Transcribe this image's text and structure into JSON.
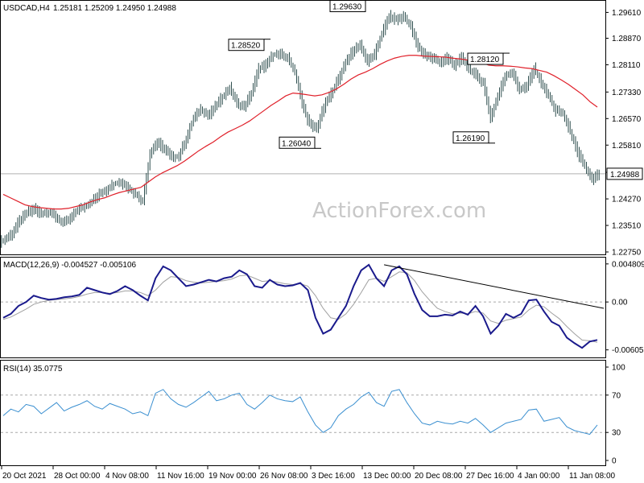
{
  "header": {
    "symbol_tf": "USDCAD,H4",
    "ohlc": "1.25181 1.25209 1.24950 1.24988"
  },
  "watermark": "ActionForex.com",
  "colors": {
    "candle": "#2f4f4f",
    "ma": "#e0202a",
    "macd_main": "#1a1a8c",
    "macd_signal": "#a0a0a0",
    "rsi": "#3a8fd0",
    "trendline": "#000000"
  },
  "chart_data": [
    {
      "type": "line",
      "title": "",
      "price_ticks": [
        "1.29610",
        "1.28870",
        "1.28110",
        "1.27330",
        "1.26570",
        "1.25810",
        "1.25030",
        "1.24270",
        "1.23510",
        "1.22750"
      ],
      "ylim": [
        1.2275,
        1.2985
      ],
      "last_price_label": "1.24988",
      "last_price": 1.24988,
      "annotations": [
        {
          "label": "1.28520",
          "value": 1.2852
        },
        {
          "label": "1.29630",
          "value": 1.2963
        },
        {
          "label": "1.26040",
          "value": 1.2604
        },
        {
          "label": "1.28120",
          "value": 1.2812
        },
        {
          "label": "1.26190",
          "value": 1.2619
        }
      ],
      "series": [
        {
          "values": [
            1.231,
            1.233,
            1.2365,
            1.2385,
            1.24,
            1.2385,
            1.239,
            1.2375,
            1.2355,
            1.237,
            1.2395,
            1.2405,
            1.242,
            1.244,
            1.2455,
            1.247,
            1.2475,
            1.246,
            1.244,
            1.242,
            1.256,
            1.259,
            1.257,
            1.2545,
            1.255,
            1.26,
            1.2655,
            1.2685,
            1.2665,
            1.269,
            1.272,
            1.2745,
            1.27,
            1.269,
            1.273,
            1.28,
            1.281,
            1.284,
            1.284,
            1.283,
            1.279,
            1.27,
            1.264,
            1.263,
            1.269,
            1.273,
            1.277,
            1.282,
            1.285,
            1.287,
            1.282,
            1.284,
            1.29,
            1.295,
            1.294,
            1.295,
            1.292,
            1.286,
            1.284,
            1.283,
            1.282,
            1.283,
            1.281,
            1.283,
            1.28,
            1.278,
            1.276,
            1.266,
            1.272,
            1.278,
            1.279,
            1.274,
            1.275,
            1.28,
            1.276,
            1.272,
            1.268,
            1.267,
            1.262,
            1.256,
            1.252,
            1.248,
            1.25
          ]
        },
        {
          "values": [
            1.244,
            1.243,
            1.242,
            1.241,
            1.2405,
            1.2402,
            1.24,
            1.2398,
            1.2398,
            1.24,
            1.2405,
            1.241,
            1.2418,
            1.2425,
            1.243,
            1.2438,
            1.2445,
            1.245,
            1.2455,
            1.246,
            1.2475,
            1.249,
            1.2502,
            1.2512,
            1.2522,
            1.2535,
            1.255,
            1.2565,
            1.2578,
            1.259,
            1.2605,
            1.2618,
            1.2628,
            1.2638,
            1.265,
            1.2665,
            1.268,
            1.2695,
            1.2708,
            1.2722,
            1.273,
            1.2728,
            1.2725,
            1.2722,
            1.2725,
            1.2732,
            1.2742,
            1.2755,
            1.277,
            1.2782,
            1.279,
            1.28,
            1.2812,
            1.2822,
            1.283,
            1.2835,
            1.2838,
            1.2838,
            1.2836,
            1.2835,
            1.2834,
            1.2833,
            1.283,
            1.2828,
            1.2825,
            1.2822,
            1.2818,
            1.281,
            1.2808,
            1.2808,
            1.2807,
            1.2805,
            1.2802,
            1.28,
            1.2795,
            1.279,
            1.278,
            1.2768,
            1.2755,
            1.274,
            1.2725,
            1.2705,
            1.269
          ]
        }
      ]
    },
    {
      "type": "line",
      "title": "MACD(12,26,9) -0.004527 -0.005106",
      "ticks": [
        "0.004809",
        "0.00",
        "-0.00605"
      ],
      "ylim": [
        -0.0068,
        0.0052
      ],
      "series": [
        {
          "values": [
            -0.002,
            -0.0015,
            -0.0005,
            0.0,
            0.0008,
            0.0005,
            0.0003,
            0.0004,
            0.0006,
            0.0007,
            0.0009,
            0.0018,
            0.0015,
            0.0012,
            0.001,
            0.0014,
            0.002,
            0.0015,
            0.0008,
            0.0002,
            0.003,
            0.0045,
            0.004,
            0.003,
            0.002,
            0.0022,
            0.0025,
            0.0028,
            0.0026,
            0.003,
            0.0032,
            0.004,
            0.0035,
            0.002,
            0.0018,
            0.0028,
            0.0022,
            0.002,
            0.0021,
            0.0024,
            0.0015,
            -0.002,
            -0.004,
            -0.0035,
            -0.002,
            -0.0005,
            0.002,
            0.004,
            0.0047,
            0.003,
            0.002,
            0.004,
            0.0045,
            0.0035,
            0.001,
            -0.001,
            -0.0018,
            -0.0018,
            -0.0016,
            -0.0017,
            -0.0012,
            -0.0016,
            -0.0005,
            -0.0018,
            -0.004,
            -0.003,
            -0.0015,
            -0.002,
            -0.0015,
            0.0002,
            0.0003,
            -0.0012,
            -0.0025,
            -0.003,
            -0.0045,
            -0.0052,
            -0.0058,
            -0.005,
            -0.0048
          ]
        },
        {
          "values": [
            -0.0022,
            -0.0019,
            -0.0014,
            -0.0009,
            -0.0003,
            0.0,
            0.0002,
            0.0003,
            0.0004,
            0.0005,
            0.0007,
            0.001,
            0.0012,
            0.0012,
            0.0011,
            0.0012,
            0.0014,
            0.0014,
            0.0012,
            0.0008,
            0.0015,
            0.0025,
            0.0032,
            0.0031,
            0.0027,
            0.0025,
            0.0024,
            0.0025,
            0.0026,
            0.0027,
            0.0029,
            0.0033,
            0.0034,
            0.003,
            0.0026,
            0.0027,
            0.0025,
            0.0023,
            0.0022,
            0.0023,
            0.002,
            0.0008,
            -0.0008,
            -0.002,
            -0.0022,
            -0.0015,
            -0.0003,
            0.0012,
            0.0028,
            0.003,
            0.0026,
            0.0032,
            0.0038,
            0.0037,
            0.0027,
            0.0013,
            0.0002,
            -0.0008,
            -0.0012,
            -0.0015,
            -0.0014,
            -0.0015,
            -0.0012,
            -0.0014,
            -0.0024,
            -0.0027,
            -0.0023,
            -0.0021,
            -0.0019,
            -0.001,
            -0.0004,
            -0.0006,
            -0.0014,
            -0.0021,
            -0.0031,
            -0.004,
            -0.0048,
            -0.0049,
            -0.0051
          ]
        }
      ],
      "trendline": {
        "from": {
          "index": 50,
          "value": 0.0047
        },
        "to": {
          "index": 78,
          "value": -0.0008
        }
      }
    },
    {
      "type": "line",
      "title": "RSI(14) 35.0775",
      "ticks": [
        "100",
        "70",
        "30",
        "0"
      ],
      "ylim": [
        0,
        100
      ],
      "guides": [
        70,
        30
      ],
      "series": [
        {
          "values": [
            48,
            55,
            52,
            60,
            58,
            50,
            56,
            62,
            53,
            57,
            60,
            64,
            58,
            55,
            61,
            58,
            55,
            50,
            52,
            48,
            72,
            76,
            66,
            60,
            57,
            62,
            68,
            74,
            64,
            66,
            70,
            72,
            60,
            55,
            62,
            70,
            66,
            64,
            63,
            68,
            52,
            38,
            30,
            35,
            48,
            55,
            60,
            68,
            73,
            62,
            58,
            74,
            76,
            62,
            50,
            40,
            38,
            42,
            40,
            39,
            42,
            40,
            45,
            38,
            30,
            35,
            40,
            42,
            44,
            54,
            55,
            42,
            44,
            46,
            36,
            32,
            30,
            28,
            38
          ]
        }
      ]
    }
  ],
  "x_axis": [
    "20 Oct 2021",
    "28 Oct 00:00",
    "4 Nov 08:00",
    "11 Nov 16:00",
    "19 Nov 00:00",
    "26 Nov 08:00",
    "3 Dec 16:00",
    "13 Dec 00:00",
    "20 Dec 08:00",
    "27 Dec 16:00",
    "4 Jan 00:00",
    "11 Jan 08:00"
  ]
}
